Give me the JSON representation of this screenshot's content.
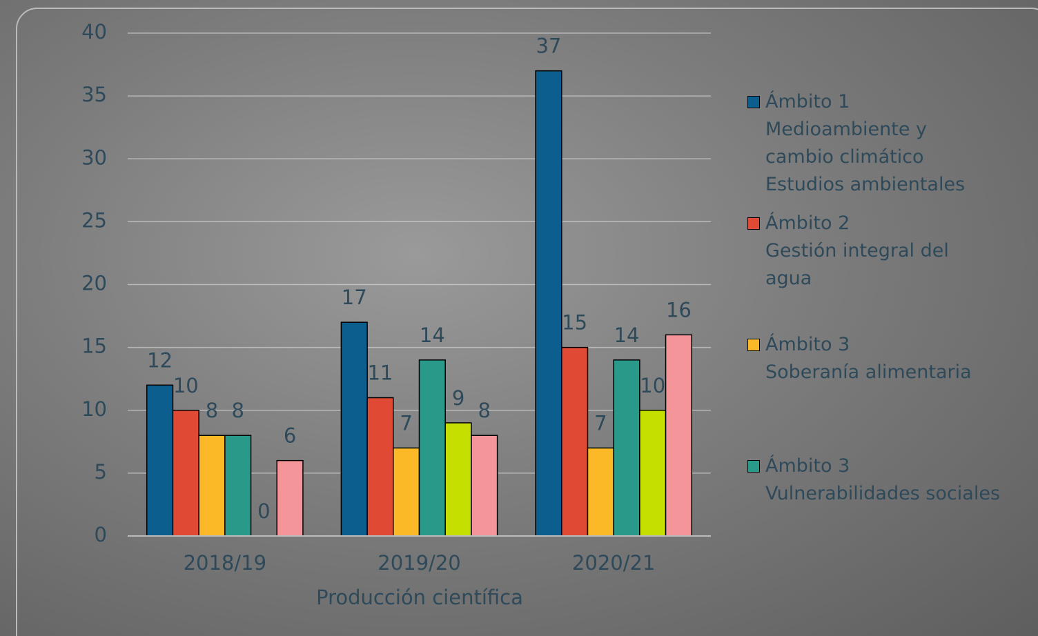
{
  "chart_data": {
    "type": "bar",
    "x_label": "Producción científica",
    "categories": [
      "2018/19",
      "2019/20",
      "2020/21"
    ],
    "series": [
      {
        "name": "Ámbito 1",
        "description": [
          "Medioambiente y cambio climático",
          "Estudios ambientales"
        ],
        "color": "#0b5e8e",
        "values": [
          12,
          17,
          37
        ]
      },
      {
        "name": "Ámbito 2",
        "description": [
          "Gestión integral del agua"
        ],
        "color": "#e04a35",
        "values": [
          10,
          11,
          15
        ]
      },
      {
        "name": "Ámbito 3",
        "description": [
          "Soberanía alimentaria"
        ],
        "color": "#fbb827",
        "values": [
          8,
          7,
          7
        ]
      },
      {
        "name": "Ámbito 3",
        "description": [
          "Vulnerabilidades sociales"
        ],
        "color": "#29998a",
        "values": [
          8,
          14,
          14
        ]
      },
      {
        "color": "#c4df00",
        "values": [
          0,
          9,
          10
        ]
      },
      {
        "color": "#f4959a",
        "values": [
          6,
          8,
          16
        ]
      }
    ],
    "ylim": [
      0,
      40
    ],
    "yticks": [
      0,
      5,
      10,
      15,
      20,
      25,
      30,
      35,
      40
    ],
    "grid": true
  }
}
